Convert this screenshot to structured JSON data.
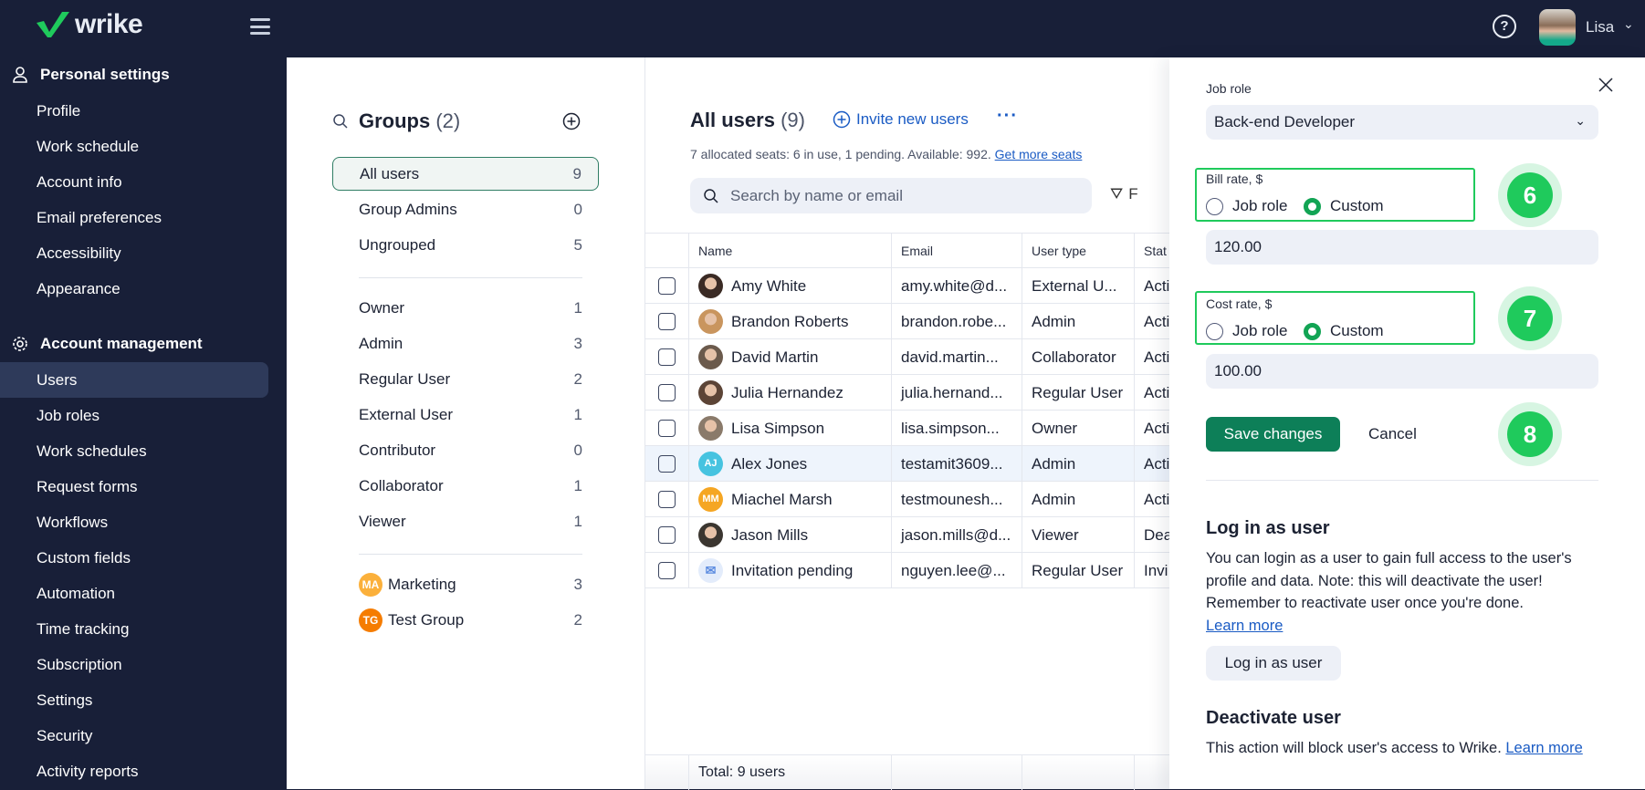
{
  "brand": {
    "logo_text": "wrike",
    "accent": "#1fca5c"
  },
  "topbar": {
    "help_icon": "question-circle-icon",
    "user_name": "Lisa"
  },
  "sidebar": {
    "personal_header": "Personal settings",
    "personal_items": [
      "Profile",
      "Work schedule",
      "Account info",
      "Email preferences",
      "Accessibility",
      "Appearance"
    ],
    "account_header": "Account management",
    "account_items": [
      "Users",
      "Job roles",
      "Work schedules",
      "Request forms",
      "Workflows",
      "Custom fields",
      "Automation",
      "Time tracking",
      "Subscription",
      "Settings",
      "Security",
      "Activity reports"
    ],
    "active": "Users"
  },
  "groups": {
    "title": "Groups",
    "count": "(2)",
    "top": [
      {
        "label": "All users",
        "count": "9",
        "active": true
      },
      {
        "label": "Group Admins",
        "count": "0"
      },
      {
        "label": "Ungrouped",
        "count": "5"
      }
    ],
    "types": [
      {
        "label": "Owner",
        "count": "1"
      },
      {
        "label": "Admin",
        "count": "3"
      },
      {
        "label": "Regular User",
        "count": "2"
      },
      {
        "label": "External User",
        "count": "1"
      },
      {
        "label": "Contributor",
        "count": "0"
      },
      {
        "label": "Collaborator",
        "count": "1"
      },
      {
        "label": "Viewer",
        "count": "1"
      }
    ],
    "custom": [
      {
        "initials": "MA",
        "label": "Marketing",
        "count": "3",
        "color": "#fbb03b"
      },
      {
        "initials": "TG",
        "label": "Test Group",
        "count": "2",
        "color": "#f57c00"
      }
    ]
  },
  "main": {
    "title": "All users",
    "count": "(9)",
    "invite_label": "Invite new users",
    "seats_text": "7 allocated seats: 6 in use, 1 pending. Available: 992.",
    "seats_link": "Get more seats",
    "search_placeholder": "Search by name or email",
    "filter_label": "F",
    "columns": [
      "Name",
      "Email",
      "User type",
      "Stat"
    ],
    "rows": [
      {
        "name": "Amy White",
        "email": "amy.white@d...",
        "type": "External U...",
        "status": "Acti",
        "avatar": "photo",
        "color": "#3a2a24"
      },
      {
        "name": "Brandon Roberts",
        "email": "brandon.robe...",
        "type": "Admin",
        "status": "Acti",
        "avatar": "photo",
        "color": "#c9955e"
      },
      {
        "name": "David Martin",
        "email": "david.martin...",
        "type": "Collaborator",
        "status": "Acti",
        "avatar": "photo",
        "color": "#6b5a4c"
      },
      {
        "name": "Julia Hernandez",
        "email": "julia.hernand...",
        "type": "Regular User",
        "status": "Acti",
        "avatar": "photo",
        "color": "#5c4436"
      },
      {
        "name": "Lisa Simpson",
        "email": "lisa.simpson...",
        "type": "Owner",
        "status": "Acti",
        "avatar": "photo",
        "color": "#8a7a6a"
      },
      {
        "name": "Alex Jones",
        "email": "testamit3609...",
        "type": "Admin",
        "status": "Acti",
        "avatar": "AJ",
        "color": "#46c3e0",
        "highlight": true
      },
      {
        "name": "Miachel Marsh",
        "email": "testmounesh...",
        "type": "Admin",
        "status": "Acti",
        "avatar": "MM",
        "color": "#f5a623"
      },
      {
        "name": "Jason Mills",
        "email": "jason.mills@d...",
        "type": "Viewer",
        "status": "Dea",
        "avatar": "photo",
        "color": "#3b3630"
      },
      {
        "name": "Invitation pending",
        "email": "nguyen.lee@...",
        "type": "Regular User",
        "status": "Invi",
        "avatar": "envelope",
        "color": "#e3ecfb"
      }
    ],
    "total": "Total: 9 users"
  },
  "panel": {
    "job_role_label": "Job role",
    "job_role_value": "Back-end Developer",
    "bill_label": "Bill rate, $",
    "bill_value": "120.00",
    "bill_mode": "Custom",
    "cost_label": "Cost rate, $",
    "cost_value": "100.00",
    "cost_mode": "Custom",
    "opt_job_role": "Job role",
    "opt_custom": "Custom",
    "save_label": "Save changes",
    "cancel_label": "Cancel",
    "login_title": "Log in as user",
    "login_text": "You can login as a user to gain full access to the user's profile and data. Note: this will deactivate the user! Remember to reactivate user once you're done.",
    "learn_more": "Learn more",
    "login_button": "Log in as user",
    "deactivate_title": "Deactivate user",
    "deactivate_text": "This action will block user's access to Wrike.",
    "deactivate_link": "Learn more"
  },
  "steps": [
    "6",
    "7",
    "8"
  ]
}
